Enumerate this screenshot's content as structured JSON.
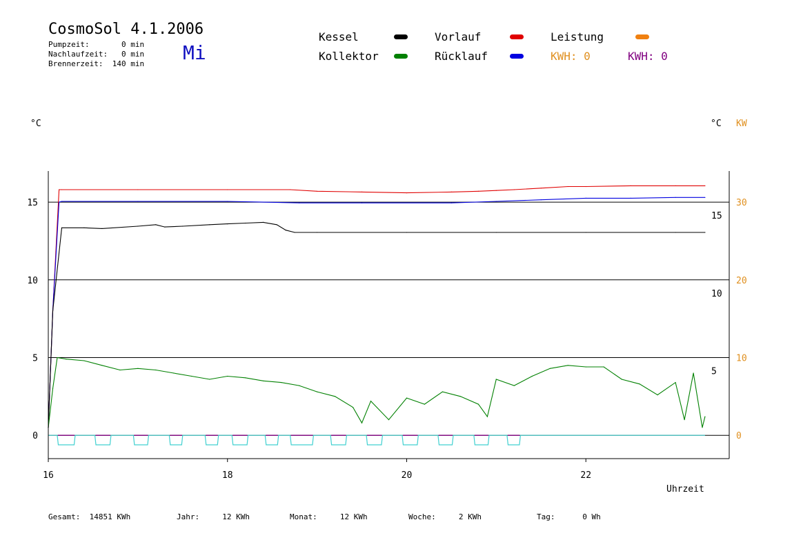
{
  "header": {
    "title": "CosmoSol 4.1.2006",
    "day": "Mi",
    "pumpzeit": "Pumpzeit:       0 min",
    "nachlaufzeit": "Nachlaufzeit:   0 min",
    "brennerzeit": "Brennerzeit:  140 min"
  },
  "legend": {
    "kessel": "Kessel",
    "kollektor": "Kollektor",
    "vorlauf": "Vorlauf",
    "ruecklauf": "Rücklauf",
    "leistung": "Leistung",
    "kwh_left": "KWH: 0",
    "kwh_right": "KWH: 0"
  },
  "colors": {
    "kessel": "#000000",
    "kollektor": "#008000",
    "vorlauf": "#e00000",
    "ruecklauf": "#0000e0",
    "leistung": "#f08010",
    "kwh_purple": "#800080",
    "pump": "#40d0d0",
    "axis_orange": "#e09020",
    "title_blue": "#1010c0"
  },
  "footer": {
    "gesamt": "Gesamt:  14851 KWh",
    "jahr": "Jahr:     12 KWh",
    "monat": "Monat:     12 KWh",
    "woche": "Woche:     2 KWh",
    "tag": "Tag:      0 Wh"
  },
  "chart_data": {
    "type": "line",
    "xlabel": "Uhrzeit",
    "ylabel_left": "°C",
    "ylabel_right_c": "°C",
    "ylabel_right_kw": "KW",
    "xlim": [
      16,
      23.6
    ],
    "ylim": [
      -1.5,
      17
    ],
    "x_ticks": [
      "16",
      "18",
      "20",
      "22"
    ],
    "y_ticks_left": [
      "15",
      "10",
      "5",
      "0"
    ],
    "y_ticks_right_c": [
      "15",
      "10",
      "5"
    ],
    "y_ticks_right_kw": [
      "30",
      "20",
      "10",
      "0"
    ],
    "grid": "horizontal",
    "series": [
      {
        "name": "Vorlauf",
        "color": "#e00000",
        "x": [
          16.0,
          16.05,
          16.12,
          16.15,
          17.0,
          18.0,
          18.7,
          19.0,
          19.5,
          20.0,
          20.5,
          20.8,
          21.0,
          21.2,
          21.5,
          21.8,
          22.0,
          22.5,
          23.0,
          23.33
        ],
        "y": [
          0.5,
          8,
          15.8,
          15.8,
          15.8,
          15.8,
          15.8,
          15.7,
          15.65,
          15.6,
          15.65,
          15.7,
          15.75,
          15.8,
          15.9,
          16.0,
          16.0,
          16.05,
          16.05,
          16.05
        ]
      },
      {
        "name": "Rücklauf",
        "color": "#0000e0",
        "x": [
          16.0,
          16.05,
          16.12,
          16.15,
          17.0,
          18.0,
          18.8,
          19.5,
          20.5,
          21.0,
          21.5,
          22.0,
          22.5,
          23.0,
          23.33
        ],
        "y": [
          0.5,
          8,
          15.0,
          15.05,
          15.05,
          15.05,
          14.95,
          14.95,
          14.95,
          15.05,
          15.15,
          15.25,
          15.25,
          15.3,
          15.3
        ]
      },
      {
        "name": "Kessel",
        "color": "#000000",
        "x": [
          16.0,
          16.05,
          16.15,
          16.4,
          16.6,
          17.0,
          17.2,
          17.3,
          17.5,
          17.8,
          18.0,
          18.2,
          18.4,
          18.55,
          18.65,
          18.75,
          19.0,
          20.0,
          21.0,
          22.0,
          23.0,
          23.33
        ],
        "y": [
          0.5,
          8,
          13.35,
          13.35,
          13.3,
          13.45,
          13.55,
          13.4,
          13.45,
          13.55,
          13.6,
          13.65,
          13.7,
          13.55,
          13.2,
          13.05,
          13.05,
          13.05,
          13.05,
          13.05,
          13.05,
          13.05
        ]
      },
      {
        "name": "Kollektor",
        "color": "#008000",
        "x": [
          16.0,
          16.05,
          16.1,
          16.2,
          16.4,
          16.6,
          16.8,
          17.0,
          17.2,
          17.4,
          17.6,
          17.8,
          18.0,
          18.2,
          18.4,
          18.6,
          18.8,
          19.0,
          19.2,
          19.4,
          19.5,
          19.6,
          19.8,
          20.0,
          20.2,
          20.4,
          20.6,
          20.8,
          20.9,
          21.0,
          21.2,
          21.4,
          21.6,
          21.8,
          22.0,
          22.2,
          22.4,
          22.6,
          22.8,
          23.0,
          23.1,
          23.2,
          23.3,
          23.33
        ],
        "y": [
          0.5,
          3,
          5.0,
          4.9,
          4.8,
          4.5,
          4.2,
          4.3,
          4.2,
          4.0,
          3.8,
          3.6,
          3.8,
          3.7,
          3.5,
          3.4,
          3.2,
          2.8,
          2.5,
          1.8,
          0.8,
          2.2,
          1.0,
          2.4,
          2.0,
          2.8,
          2.5,
          2.0,
          1.2,
          3.6,
          3.2,
          3.8,
          4.3,
          4.5,
          4.4,
          4.4,
          3.6,
          3.3,
          2.6,
          3.4,
          1.0,
          4.0,
          0.5,
          1.2
        ]
      }
    ],
    "pump_cycles": [
      [
        16.1,
        16.3
      ],
      [
        16.52,
        16.7
      ],
      [
        16.95,
        17.12
      ],
      [
        17.35,
        17.5
      ],
      [
        17.75,
        17.9
      ],
      [
        18.05,
        18.23
      ],
      [
        18.42,
        18.57
      ],
      [
        18.7,
        18.96
      ],
      [
        19.15,
        19.33
      ],
      [
        19.55,
        19.73
      ],
      [
        19.95,
        20.13
      ],
      [
        20.35,
        20.52
      ],
      [
        20.75,
        20.92
      ],
      [
        21.12,
        21.27
      ]
    ]
  }
}
